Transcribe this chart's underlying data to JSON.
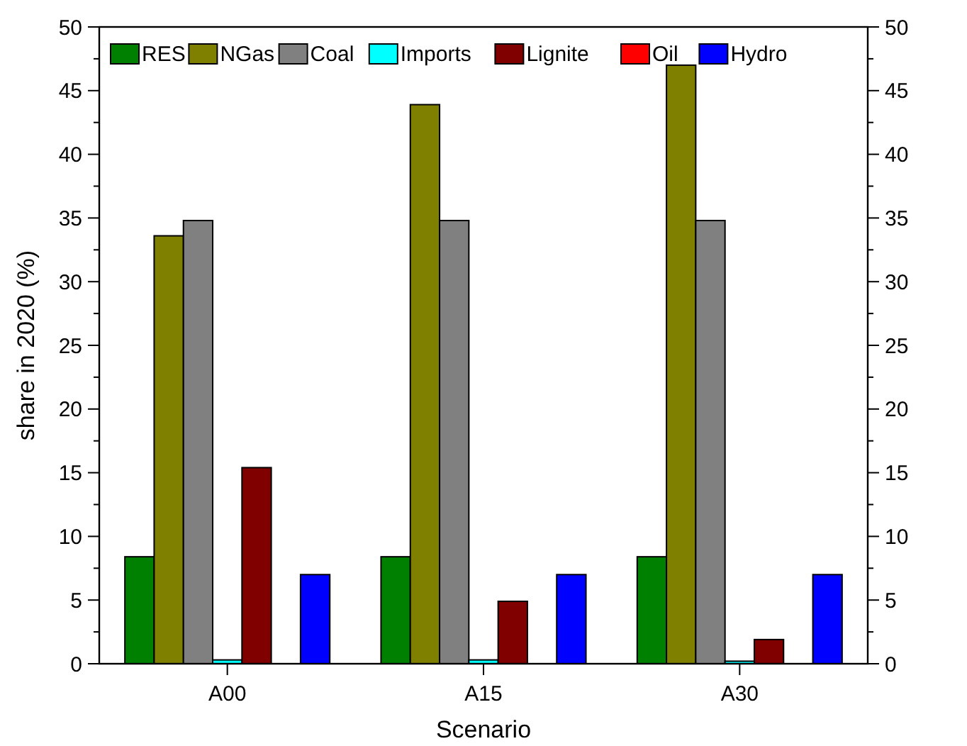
{
  "chart_data": {
    "type": "bar",
    "xlabel": "Scenario",
    "ylabel": "share in 2020 (%)",
    "categories": [
      "A00",
      "A15",
      "A30"
    ],
    "series": [
      {
        "name": "RES",
        "color": "#008000",
        "values": [
          8.4,
          8.4,
          8.4
        ]
      },
      {
        "name": "NGas",
        "color": "#808000",
        "values": [
          33.6,
          43.9,
          47
        ]
      },
      {
        "name": "Coal",
        "color": "#808080",
        "values": [
          34.8,
          34.8,
          34.8
        ]
      },
      {
        "name": "Imports",
        "color": "#00ffff",
        "values": [
          0.3,
          0.3,
          0.2
        ]
      },
      {
        "name": "Lignite",
        "color": "#800000",
        "values": [
          15.4,
          4.9,
          1.9
        ]
      },
      {
        "name": "Oil",
        "color": "#ff0000",
        "values": [
          0,
          0,
          0
        ]
      },
      {
        "name": "Hydro",
        "color": "#0000ff",
        "values": [
          7,
          7,
          7
        ]
      }
    ],
    "ylim": [
      0,
      50
    ],
    "yticks": [
      0,
      {
        "value": 2.5,
        "label": null
      },
      5,
      {
        "value": 7.5,
        "label": null
      },
      10,
      {
        "value": 12.5,
        "label": null
      },
      15,
      {
        "value": 17.5,
        "label": null
      },
      20,
      {
        "value": 22.5,
        "label": null
      },
      25,
      {
        "value": 27.5,
        "label": null
      },
      30,
      {
        "value": 32.5,
        "label": null
      },
      35,
      {
        "value": 37.5,
        "label": null
      },
      40,
      {
        "value": 42.5,
        "label": null
      },
      45,
      {
        "value": 47.5,
        "label": null
      },
      50
    ],
    "y2lim": [
      0,
      50
    ],
    "y2ticks": [
      0,
      {
        "value": 2.5,
        "label": null
      },
      5,
      {
        "value": 7.5,
        "label": null
      },
      10,
      {
        "value": 12.5,
        "label": null
      },
      15,
      {
        "value": 17.5,
        "label": null
      },
      20,
      {
        "value": 22.5,
        "label": null
      },
      25,
      {
        "value": 27.5,
        "label": null
      },
      30,
      {
        "value": 32.5,
        "label": null
      },
      35,
      {
        "value": 37.5,
        "label": null
      },
      40,
      {
        "value": 42.5,
        "label": null
      },
      45,
      {
        "value": 47.5,
        "label": null
      },
      50
    ],
    "legend": "top left",
    "grid": false
  }
}
